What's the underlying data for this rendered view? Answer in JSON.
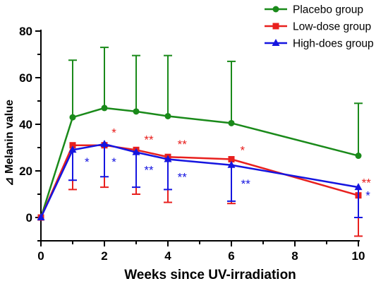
{
  "chart_data": {
    "type": "line",
    "xlabel": "Weeks since UV-irradiation",
    "ylabel": "⊿ Melanin value",
    "xlim": [
      0,
      10
    ],
    "ylim": [
      -10,
      80
    ],
    "xticks": [
      0,
      2,
      4,
      6,
      8,
      10
    ],
    "yticks": [
      0,
      20,
      40,
      60,
      80
    ],
    "legend_position": "top-right",
    "series": [
      {
        "name": "Placebo group",
        "color": "#1a8a1a",
        "marker": "circle",
        "x": [
          0,
          1,
          2,
          3,
          4,
          6,
          10
        ],
        "y": [
          0,
          43,
          47,
          45.5,
          43.5,
          40.5,
          26.5
        ],
        "error_up": [
          0,
          24.5,
          26,
          24,
          26,
          26.5,
          22.5
        ],
        "error_down": [
          0,
          0,
          0,
          0,
          0,
          0,
          0
        ]
      },
      {
        "name": "Low-dose group",
        "color": "#e8201e",
        "marker": "square",
        "x": [
          0,
          1,
          2,
          3,
          4,
          6,
          10
        ],
        "y": [
          0,
          31,
          31,
          29,
          26,
          25,
          9.5
        ],
        "error_up": [
          0,
          0,
          0,
          0,
          0,
          0,
          0
        ],
        "error_down": [
          0,
          19,
          18,
          19,
          19.5,
          19,
          17.5
        ]
      },
      {
        "name": "High-does group",
        "color": "#1515e0",
        "marker": "triangle",
        "x": [
          0,
          1,
          2,
          3,
          4,
          6,
          10
        ],
        "y": [
          0,
          29,
          31.5,
          28,
          25,
          22.5,
          13
        ],
        "error_up": [
          0,
          0,
          0,
          0,
          0,
          0,
          0
        ],
        "error_down": [
          0,
          13,
          14,
          15,
          13,
          15.5,
          13
        ]
      }
    ],
    "annotations": [
      {
        "text": "*",
        "x": 1.45,
        "y": 24,
        "color": "#1515e0"
      },
      {
        "text": "*",
        "x": 2.3,
        "y": 36.5,
        "color": "#e8201e"
      },
      {
        "text": "*",
        "x": 2.3,
        "y": 24,
        "color": "#1515e0"
      },
      {
        "text": "**",
        "x": 3.4,
        "y": 33.5,
        "color": "#e8201e"
      },
      {
        "text": "**",
        "x": 3.4,
        "y": 20.5,
        "color": "#1515e0"
      },
      {
        "text": "**",
        "x": 4.45,
        "y": 31.5,
        "color": "#e8201e"
      },
      {
        "text": "**",
        "x": 4.45,
        "y": 17.5,
        "color": "#1515e0"
      },
      {
        "text": "*",
        "x": 6.35,
        "y": 29,
        "color": "#e8201e"
      },
      {
        "text": "**",
        "x": 6.45,
        "y": 14.5,
        "color": "#1515e0"
      },
      {
        "text": "**",
        "x": 10.25,
        "y": 15,
        "color": "#e8201e"
      },
      {
        "text": "*",
        "x": 10.3,
        "y": 9.5,
        "color": "#1515e0"
      }
    ]
  }
}
